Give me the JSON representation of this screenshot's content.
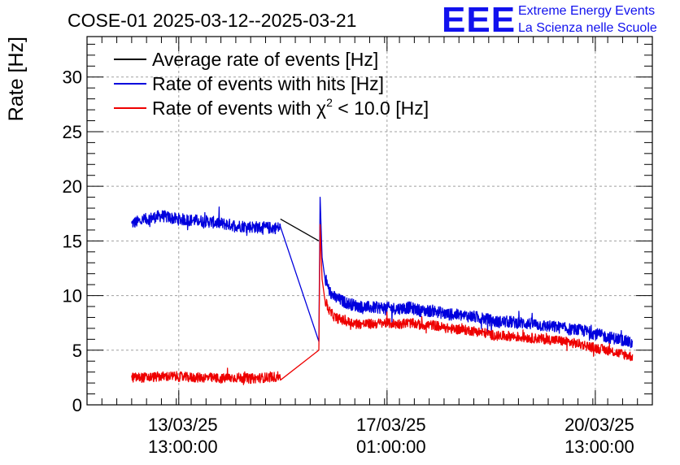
{
  "chart_data": {
    "type": "line",
    "title": "COSE-01 2025-03-12--2025-03-21",
    "ylabel": "Rate [Hz]",
    "xlabel": "",
    "x_unit": "hours since 2025-03-12 00:00",
    "xlim": [
      0,
      228
    ],
    "ylim": [
      0,
      33.7
    ],
    "y_ticks": [
      0,
      5,
      10,
      15,
      20,
      25,
      30
    ],
    "x_ticks": [
      {
        "x": 37,
        "line1": "13/03/25",
        "line2": "13:00:00"
      },
      {
        "x": 121,
        "line1": "17/03/25",
        "line2": "01:00:00"
      },
      {
        "x": 205,
        "line1": "20/03/25",
        "line2": "13:00:00"
      }
    ],
    "grid": true,
    "legend_position": "top-left",
    "series": [
      {
        "name": "Average rate of events [Hz]",
        "color": "#000000",
        "noise": 0,
        "points": [
          [
            78,
            17.0
          ],
          [
            93.5,
            15.0
          ]
        ]
      },
      {
        "name": "Rate of events with hits [Hz]",
        "color": "#0000dd",
        "noise": 0.55,
        "points": [
          [
            18,
            16.6
          ],
          [
            24,
            17.0
          ],
          [
            30,
            17.3
          ],
          [
            36,
            17.0
          ],
          [
            42,
            16.9
          ],
          [
            48,
            16.8
          ],
          [
            54,
            16.6
          ],
          [
            60,
            16.4
          ],
          [
            66,
            16.3
          ],
          [
            72,
            16.2
          ],
          [
            78,
            16.2
          ],
          [
            93.5,
            5.8
          ],
          [
            94.0,
            19.0
          ],
          [
            94.8,
            13.5
          ],
          [
            96,
            11.5
          ],
          [
            98,
            10.3
          ],
          [
            100,
            9.8
          ],
          [
            105,
            9.3
          ],
          [
            110,
            9.0
          ],
          [
            115,
            8.9
          ],
          [
            120,
            8.9
          ],
          [
            125,
            8.8
          ],
          [
            130,
            8.9
          ],
          [
            135,
            8.6
          ],
          [
            140,
            8.6
          ],
          [
            145,
            8.3
          ],
          [
            150,
            8.2
          ],
          [
            155,
            8.1
          ],
          [
            160,
            7.9
          ],
          [
            165,
            7.6
          ],
          [
            170,
            7.6
          ],
          [
            175,
            7.5
          ],
          [
            180,
            7.4
          ],
          [
            185,
            7.2
          ],
          [
            190,
            7.1
          ],
          [
            195,
            6.9
          ],
          [
            200,
            6.8
          ],
          [
            205,
            6.5
          ],
          [
            210,
            6.2
          ],
          [
            215,
            6.0
          ],
          [
            220,
            5.6
          ]
        ]
      },
      {
        "name": "Rate of events with χ² < 10.0 [Hz]",
        "color": "#ee0000",
        "noise": 0.45,
        "points": [
          [
            18,
            2.5
          ],
          [
            24,
            2.5
          ],
          [
            30,
            2.6
          ],
          [
            36,
            2.6
          ],
          [
            42,
            2.5
          ],
          [
            48,
            2.5
          ],
          [
            54,
            2.4
          ],
          [
            60,
            2.5
          ],
          [
            66,
            2.4
          ],
          [
            72,
            2.5
          ],
          [
            78,
            2.6
          ],
          [
            93.5,
            5.0
          ],
          [
            94.0,
            16.5
          ],
          [
            94.8,
            11.5
          ],
          [
            96,
            9.5
          ],
          [
            98,
            8.5
          ],
          [
            100,
            8.0
          ],
          [
            105,
            7.6
          ],
          [
            110,
            7.4
          ],
          [
            115,
            7.4
          ],
          [
            120,
            7.5
          ],
          [
            125,
            7.4
          ],
          [
            130,
            7.5
          ],
          [
            135,
            7.3
          ],
          [
            140,
            7.3
          ],
          [
            145,
            7.0
          ],
          [
            150,
            6.9
          ],
          [
            155,
            6.8
          ],
          [
            160,
            6.6
          ],
          [
            165,
            6.3
          ],
          [
            170,
            6.3
          ],
          [
            175,
            6.2
          ],
          [
            180,
            6.1
          ],
          [
            185,
            6.0
          ],
          [
            190,
            5.9
          ],
          [
            195,
            5.7
          ],
          [
            200,
            5.5
          ],
          [
            205,
            5.2
          ],
          [
            210,
            5.0
          ],
          [
            215,
            4.7
          ],
          [
            220,
            4.4
          ]
        ]
      }
    ]
  },
  "legend": {
    "line1": "Average rate of events [Hz]",
    "line2": "Rate of events with hits [Hz]",
    "line3_prefix": "Rate of events with ",
    "line3_symbol": "χ",
    "line3_sup": "2",
    "line3_suffix": " < 10.0 [Hz]"
  },
  "logo": {
    "mark": "EEE",
    "line1": "Extreme Energy Events",
    "line2": "La Scienza nelle Scuole"
  }
}
